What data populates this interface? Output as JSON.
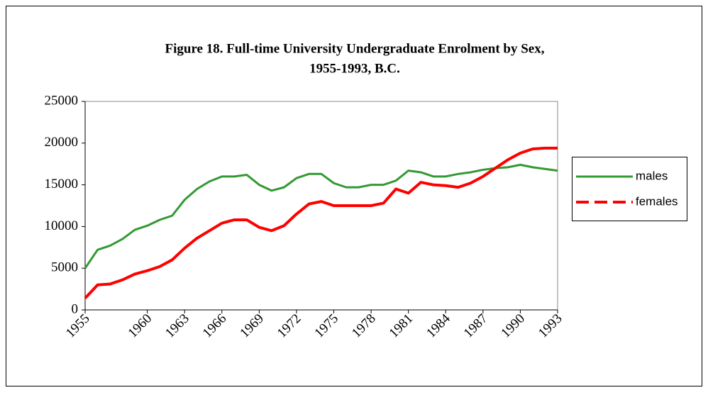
{
  "chart_data": {
    "type": "line",
    "title": "Figure 18. Full-time University Undergraduate Enrolment by Sex,",
    "subtitle": "1955-1993, B.C.",
    "x": [
      1955,
      1956,
      1957,
      1958,
      1959,
      1960,
      1961,
      1962,
      1963,
      1964,
      1965,
      1966,
      1967,
      1968,
      1969,
      1970,
      1971,
      1972,
      1973,
      1974,
      1975,
      1976,
      1977,
      1978,
      1979,
      1980,
      1981,
      1982,
      1983,
      1984,
      1985,
      1986,
      1987,
      1988,
      1989,
      1990,
      1991,
      1992,
      1993
    ],
    "series": [
      {
        "name": "males",
        "color": "#339933",
        "dashed": false,
        "values": [
          5000,
          7200,
          7700,
          8500,
          9600,
          10100,
          10800,
          11300,
          13200,
          14500,
          15400,
          16000,
          16000,
          16200,
          15000,
          14300,
          14700,
          15800,
          16300,
          16300,
          15200,
          14700,
          14700,
          15000,
          15000,
          15500,
          16700,
          16500,
          16000,
          16000,
          16300,
          16500,
          16800,
          17000,
          17100,
          17400,
          17100,
          16900,
          16700
        ]
      },
      {
        "name": "females",
        "color": "#ff0000",
        "dashed": true,
        "values": [
          1400,
          3000,
          3100,
          3600,
          4300,
          4700,
          5200,
          6000,
          7400,
          8600,
          9500,
          10400,
          10800,
          10800,
          9900,
          9500,
          10100,
          11500,
          12700,
          13000,
          12500,
          12500,
          12500,
          12500,
          12800,
          14500,
          14000,
          15300,
          15000,
          14900,
          14700,
          15200,
          16000,
          17000,
          18000,
          18800,
          19300,
          19400,
          19400
        ]
      }
    ],
    "xlim": [
      1955,
      1993
    ],
    "xticks": [
      1955,
      1960,
      1963,
      1966,
      1969,
      1972,
      1975,
      1978,
      1981,
      1984,
      1987,
      1990,
      1993
    ],
    "ylim": [
      0,
      25000
    ],
    "yticks": [
      0,
      5000,
      10000,
      15000,
      20000,
      25000
    ],
    "grid": false,
    "legend": "right"
  }
}
